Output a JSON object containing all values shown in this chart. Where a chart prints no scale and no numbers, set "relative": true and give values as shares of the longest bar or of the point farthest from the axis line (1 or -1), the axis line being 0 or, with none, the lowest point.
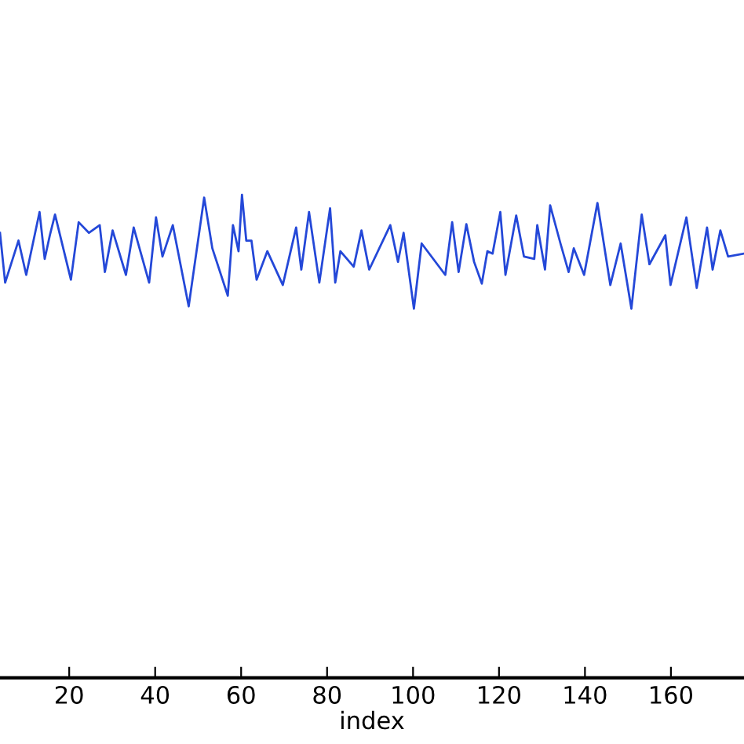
{
  "chart_data": {
    "type": "line",
    "xlabel": "index",
    "relative": true,
    "xlim": [
      3.9,
      177
    ],
    "xticks": [
      20,
      40,
      60,
      80,
      100,
      120,
      140,
      160
    ],
    "grid": false,
    "marker": "none",
    "line_style": "solid",
    "series": [
      {
        "color": "#2448d8",
        "x": [
          3.9,
          5.1,
          8.2,
          10.0,
          13.1,
          14.3,
          15.5,
          16.7,
          20.4,
          22.2,
          24.6,
          27.1,
          28.3,
          30.1,
          33.2,
          35.0,
          38.6,
          40.2,
          41.7,
          44.1,
          47.8,
          51.4,
          53.3,
          56.9,
          58.1,
          59.4,
          60.2,
          61.2,
          62.4,
          63.6,
          66.1,
          69.7,
          72.8,
          74.0,
          75.8,
          78.2,
          80.7,
          81.9,
          83.1,
          86.2,
          88.0,
          89.8,
          94.7,
          96.5,
          97.8,
          100.2,
          102.0,
          107.5,
          109.1,
          110.6,
          112.4,
          114.2,
          116.0,
          117.3,
          118.5,
          120.3,
          121.5,
          124.0,
          125.8,
          128.2,
          128.9,
          130.7,
          131.9,
          134.3,
          136.2,
          137.4,
          139.8,
          142.9,
          145.9,
          148.3,
          150.8,
          153.2,
          155.0,
          158.7,
          159.9,
          163.6,
          166.0,
          168.4,
          169.7,
          171.5,
          173.3,
          177.0
        ],
        "values": [
          0.921,
          0.818,
          0.905,
          0.834,
          0.964,
          0.867,
          0.916,
          0.959,
          0.824,
          0.943,
          0.921,
          0.937,
          0.84,
          0.926,
          0.834,
          0.932,
          0.818,
          0.953,
          0.872,
          0.937,
          0.769,
          0.994,
          0.889,
          0.791,
          0.937,
          0.883,
          1.0,
          0.905,
          0.905,
          0.824,
          0.883,
          0.813,
          0.932,
          0.845,
          0.964,
          0.818,
          0.972,
          0.818,
          0.883,
          0.851,
          0.926,
          0.845,
          0.937,
          0.861,
          0.921,
          0.764,
          0.899,
          0.834,
          0.943,
          0.84,
          0.939,
          0.861,
          0.816,
          0.883,
          0.878,
          0.964,
          0.834,
          0.957,
          0.872,
          0.867,
          0.937,
          0.845,
          0.978,
          0.899,
          0.84,
          0.889,
          0.834,
          0.983,
          0.813,
          0.899,
          0.764,
          0.959,
          0.856,
          0.916,
          0.813,
          0.953,
          0.807,
          0.932,
          0.845,
          0.926,
          0.872,
          0.878
        ]
      }
    ]
  }
}
